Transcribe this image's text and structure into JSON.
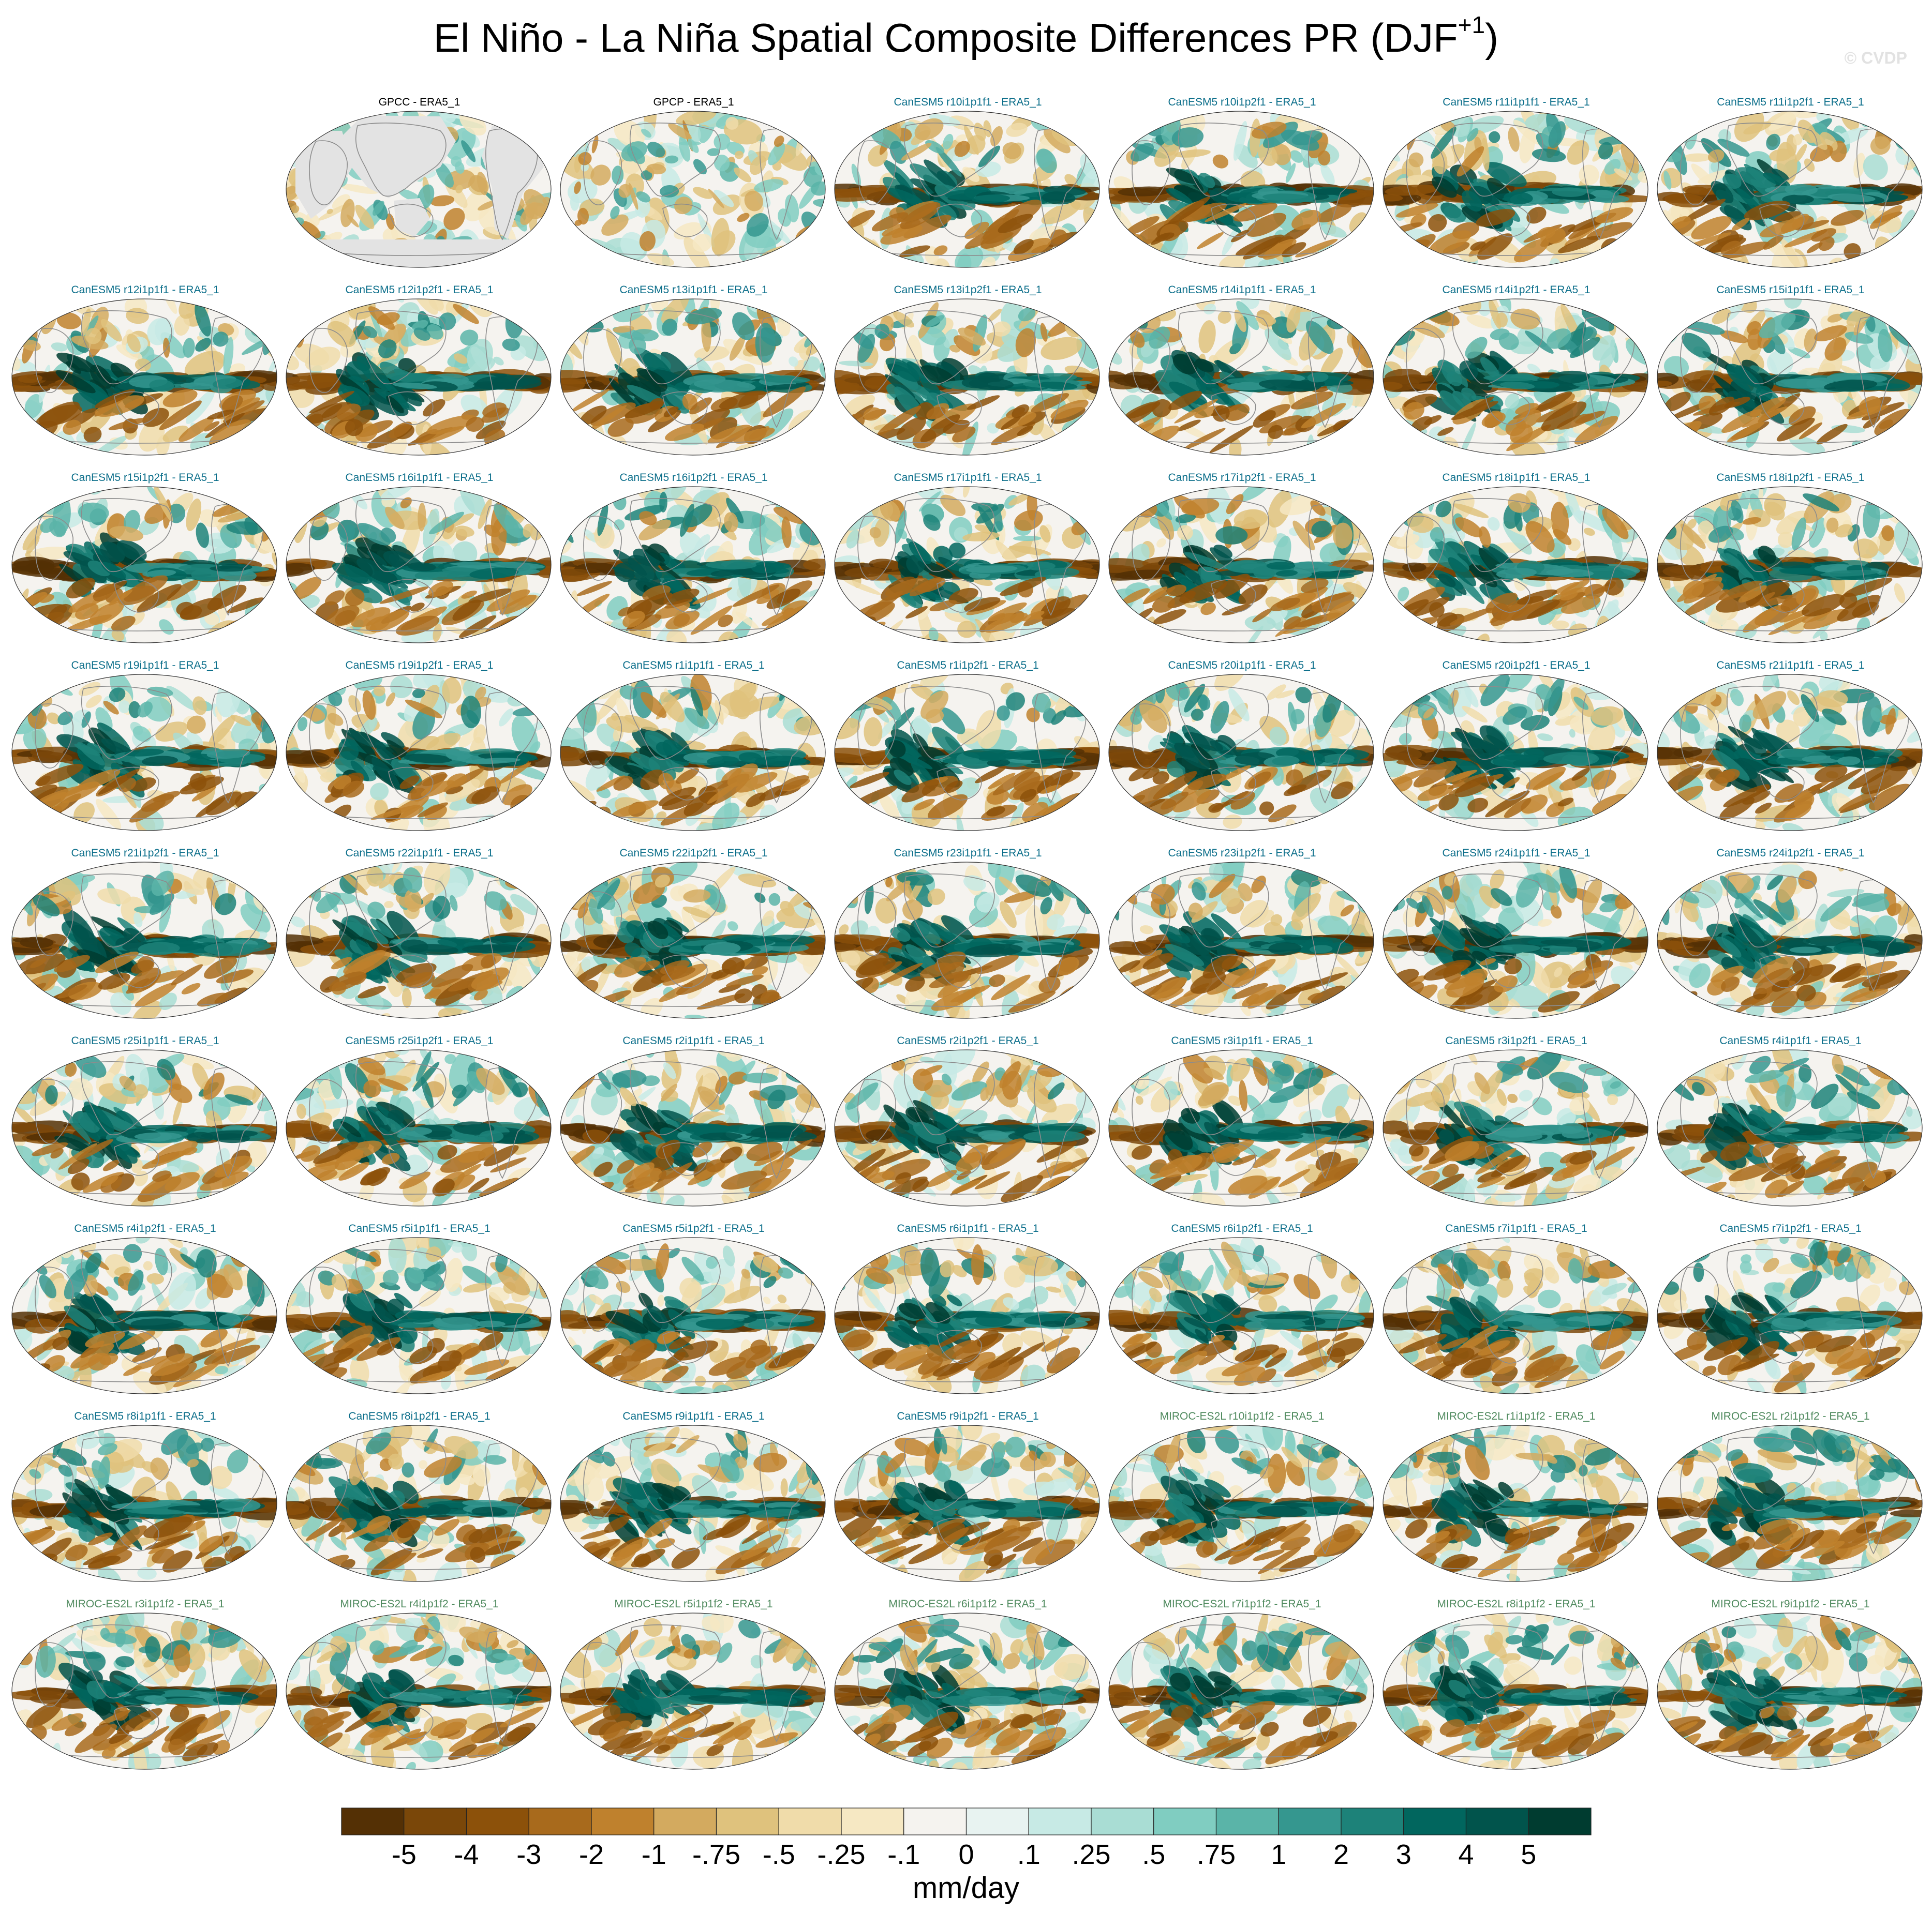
{
  "title": {
    "main": "El Niño - La Niña Spatial Composite Differences PR (DJF",
    "sup": "+1",
    "close": ")"
  },
  "watermark": "© CVDP",
  "colors": {
    "canesm_title": "#0b6e8a",
    "miroc_title": "#4f8a5e",
    "obs_title": "#000000",
    "land_mask": "#e3e3e3",
    "coast": "#8c8c8c"
  },
  "chart_data": {
    "type": "heatmap",
    "title": "El Niño - La Niña Spatial Composite Differences PR (DJF+1)",
    "panels": [
      {
        "label": "GPCC - ERA5_1",
        "group": "obs",
        "land_masked": true
      },
      {
        "label": "GPCP - ERA5_1",
        "group": "obs"
      },
      {
        "label": "CanESM5 r10i1p1f1 - ERA5_1",
        "group": "canesm"
      },
      {
        "label": "CanESM5 r10i1p2f1 - ERA5_1",
        "group": "canesm"
      },
      {
        "label": "CanESM5 r11i1p1f1 - ERA5_1",
        "group": "canesm"
      },
      {
        "label": "CanESM5 r11i1p2f1 - ERA5_1",
        "group": "canesm"
      },
      {
        "label": "CanESM5 r12i1p1f1 - ERA5_1",
        "group": "canesm"
      },
      {
        "label": "CanESM5 r12i1p2f1 - ERA5_1",
        "group": "canesm"
      },
      {
        "label": "CanESM5 r13i1p1f1 - ERA5_1",
        "group": "canesm"
      },
      {
        "label": "CanESM5 r13i1p2f1 - ERA5_1",
        "group": "canesm"
      },
      {
        "label": "CanESM5 r14i1p1f1 - ERA5_1",
        "group": "canesm"
      },
      {
        "label": "CanESM5 r14i1p2f1 - ERA5_1",
        "group": "canesm"
      },
      {
        "label": "CanESM5 r15i1p1f1 - ERA5_1",
        "group": "canesm"
      },
      {
        "label": "CanESM5 r15i1p2f1 - ERA5_1",
        "group": "canesm"
      },
      {
        "label": "CanESM5 r16i1p1f1 - ERA5_1",
        "group": "canesm"
      },
      {
        "label": "CanESM5 r16i1p2f1 - ERA5_1",
        "group": "canesm"
      },
      {
        "label": "CanESM5 r17i1p1f1 - ERA5_1",
        "group": "canesm"
      },
      {
        "label": "CanESM5 r17i1p2f1 - ERA5_1",
        "group": "canesm"
      },
      {
        "label": "CanESM5 r18i1p1f1 - ERA5_1",
        "group": "canesm"
      },
      {
        "label": "CanESM5 r18i1p2f1 - ERA5_1",
        "group": "canesm"
      },
      {
        "label": "CanESM5 r19i1p1f1 - ERA5_1",
        "group": "canesm"
      },
      {
        "label": "CanESM5 r19i1p2f1 - ERA5_1",
        "group": "canesm"
      },
      {
        "label": "CanESM5 r1i1p1f1 - ERA5_1",
        "group": "canesm"
      },
      {
        "label": "CanESM5 r1i1p2f1 - ERA5_1",
        "group": "canesm"
      },
      {
        "label": "CanESM5 r20i1p1f1 - ERA5_1",
        "group": "canesm"
      },
      {
        "label": "CanESM5 r20i1p2f1 - ERA5_1",
        "group": "canesm"
      },
      {
        "label": "CanESM5 r21i1p1f1 - ERA5_1",
        "group": "canesm"
      },
      {
        "label": "CanESM5 r21i1p2f1 - ERA5_1",
        "group": "canesm"
      },
      {
        "label": "CanESM5 r22i1p1f1 - ERA5_1",
        "group": "canesm"
      },
      {
        "label": "CanESM5 r22i1p2f1 - ERA5_1",
        "group": "canesm"
      },
      {
        "label": "CanESM5 r23i1p1f1 - ERA5_1",
        "group": "canesm"
      },
      {
        "label": "CanESM5 r23i1p2f1 - ERA5_1",
        "group": "canesm"
      },
      {
        "label": "CanESM5 r24i1p1f1 - ERA5_1",
        "group": "canesm"
      },
      {
        "label": "CanESM5 r24i1p2f1 - ERA5_1",
        "group": "canesm"
      },
      {
        "label": "CanESM5 r25i1p1f1 - ERA5_1",
        "group": "canesm"
      },
      {
        "label": "CanESM5 r25i1p2f1 - ERA5_1",
        "group": "canesm"
      },
      {
        "label": "CanESM5 r2i1p1f1 - ERA5_1",
        "group": "canesm"
      },
      {
        "label": "CanESM5 r2i1p2f1 - ERA5_1",
        "group": "canesm"
      },
      {
        "label": "CanESM5 r3i1p1f1 - ERA5_1",
        "group": "canesm"
      },
      {
        "label": "CanESM5 r3i1p2f1 - ERA5_1",
        "group": "canesm"
      },
      {
        "label": "CanESM5 r4i1p1f1 - ERA5_1",
        "group": "canesm"
      },
      {
        "label": "CanESM5 r4i1p2f1 - ERA5_1",
        "group": "canesm"
      },
      {
        "label": "CanESM5 r5i1p1f1 - ERA5_1",
        "group": "canesm"
      },
      {
        "label": "CanESM5 r5i1p2f1 - ERA5_1",
        "group": "canesm"
      },
      {
        "label": "CanESM5 r6i1p1f1 - ERA5_1",
        "group": "canesm"
      },
      {
        "label": "CanESM5 r6i1p2f1 - ERA5_1",
        "group": "canesm"
      },
      {
        "label": "CanESM5 r7i1p1f1 - ERA5_1",
        "group": "canesm"
      },
      {
        "label": "CanESM5 r7i1p2f1 - ERA5_1",
        "group": "canesm"
      },
      {
        "label": "CanESM5 r8i1p1f1 - ERA5_1",
        "group": "canesm"
      },
      {
        "label": "CanESM5 r8i1p2f1 - ERA5_1",
        "group": "canesm"
      },
      {
        "label": "CanESM5 r9i1p1f1 - ERA5_1",
        "group": "canesm"
      },
      {
        "label": "CanESM5 r9i1p2f1 - ERA5_1",
        "group": "canesm"
      },
      {
        "label": "MIROC-ES2L r10i1p1f2 - ERA5_1",
        "group": "miroc"
      },
      {
        "label": "MIROC-ES2L r1i1p1f2 - ERA5_1",
        "group": "miroc"
      },
      {
        "label": "MIROC-ES2L r2i1p1f2 - ERA5_1",
        "group": "miroc"
      },
      {
        "label": "MIROC-ES2L r3i1p1f2 - ERA5_1",
        "group": "miroc"
      },
      {
        "label": "MIROC-ES2L r4i1p1f2 - ERA5_1",
        "group": "miroc"
      },
      {
        "label": "MIROC-ES2L r5i1p1f2 - ERA5_1",
        "group": "miroc"
      },
      {
        "label": "MIROC-ES2L r6i1p1f2 - ERA5_1",
        "group": "miroc"
      },
      {
        "label": "MIROC-ES2L r7i1p1f2 - ERA5_1",
        "group": "miroc"
      },
      {
        "label": "MIROC-ES2L r8i1p1f2 - ERA5_1",
        "group": "miroc"
      },
      {
        "label": "MIROC-ES2L r9i1p1f2 - ERA5_1",
        "group": "miroc"
      }
    ],
    "colorbar": {
      "label": "mm/day",
      "tick_labels": [
        "-5",
        "-4",
        "-3",
        "-2",
        "-1",
        "-.75",
        "-.5",
        "-.25",
        "-.1",
        "0",
        ".1",
        ".25",
        ".5",
        ".75",
        "1",
        "2",
        "3",
        "4",
        "5"
      ],
      "colors": [
        "#543005",
        "#7a4709",
        "#8c510a",
        "#a86a1c",
        "#bf812d",
        "#d3aa5f",
        "#dfc27d",
        "#f0dcaa",
        "#f6e8c3",
        "#f5f3ef",
        "#e8f3f1",
        "#c7eae5",
        "#a9ddd4",
        "#80cdc1",
        "#5ab4a8",
        "#35978f",
        "#1d8279",
        "#01665e",
        "#01544c",
        "#003c30"
      ]
    }
  }
}
